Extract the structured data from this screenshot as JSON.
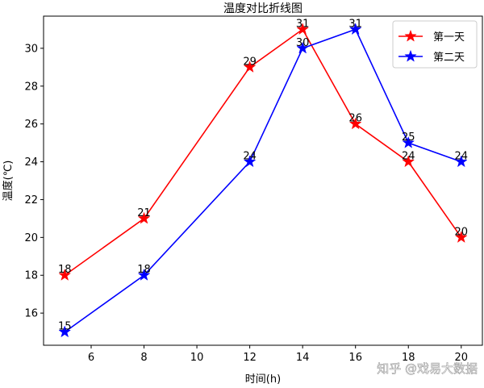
{
  "chart_data": {
    "type": "line",
    "title": "温度对比折线图",
    "xlabel": "时间(h)",
    "ylabel": "温度(℃)",
    "x": [
      5,
      8,
      12,
      14,
      16,
      18,
      20
    ],
    "xlim": [
      4.2,
      20.8
    ],
    "ylim": [
      14.3,
      31.7
    ],
    "xticks": [
      6,
      8,
      10,
      12,
      14,
      16,
      18,
      20
    ],
    "yticks": [
      16,
      18,
      20,
      22,
      24,
      26,
      28,
      30
    ],
    "grid": false,
    "legend_position": "top-right",
    "series": [
      {
        "name": "第一天",
        "color": "#ff0000",
        "marker": "star",
        "values": [
          18,
          21,
          29,
          31,
          26,
          24,
          20
        ]
      },
      {
        "name": "第二天",
        "color": "#0000ff",
        "marker": "star",
        "values": [
          15,
          18,
          24,
          30,
          31,
          25,
          24
        ]
      }
    ]
  },
  "watermark": "知乎 @戏易大数据"
}
